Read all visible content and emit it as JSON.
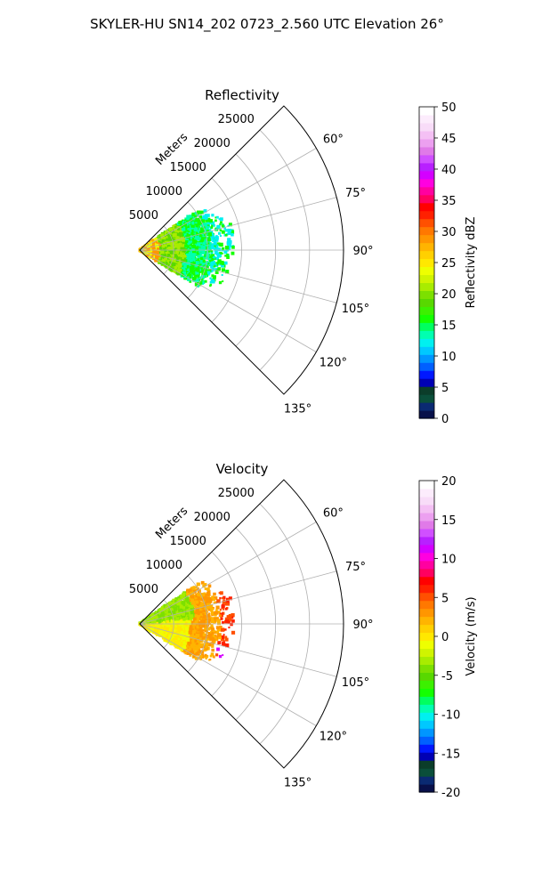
{
  "figure": {
    "title": "SKYLER-HU  SN14_202  0723_2.560 UTC Elevation 26°"
  },
  "chart_data": [
    {
      "type": "polar-sector",
      "title": "Reflectivity",
      "radial_label": "Meters",
      "theta_range_deg": [
        45,
        135
      ],
      "theta_ticks": [
        "60°",
        "75°",
        "90°",
        "105°",
        "120°",
        "135°"
      ],
      "radial_max": 30000,
      "radial_ticks": [
        "5000",
        "10000",
        "15000",
        "20000",
        "25000"
      ],
      "grid": true,
      "field": "reflectivity",
      "colorbar": {
        "label": "Reflectivity dBZ",
        "range": [
          0,
          50
        ],
        "ticks": [
          "0",
          "5",
          "10",
          "15",
          "20",
          "25",
          "30",
          "35",
          "40",
          "45",
          "50"
        ],
        "colors": [
          "#08104a",
          "#0a2a72",
          "#0a4f3a",
          "#0b3d2a",
          "#0000b4",
          "#0018ff",
          "#0060ff",
          "#0096ff",
          "#00c8ff",
          "#00f0f0",
          "#00ffb0",
          "#00ff60",
          "#14ff00",
          "#3cf000",
          "#58d800",
          "#7ce000",
          "#a8ec00",
          "#d0f400",
          "#eeff00",
          "#ffe800",
          "#ffd000",
          "#ffb400",
          "#ff9600",
          "#ff7800",
          "#ff5000",
          "#ff2000",
          "#ff0000",
          "#ff0060",
          "#ff00a0",
          "#ff00e0",
          "#d400ff",
          "#b820ff",
          "#d050ff",
          "#e07ae8",
          "#eca0f0",
          "#f4c0f4",
          "#f8dcf8",
          "#fcecfc",
          "#ffffff"
        ]
      },
      "echo": {
        "dominant": "green-yellow near radar, cyan at range",
        "max_range_m": 15000,
        "azimuth_extent_deg": [
          55,
          122
        ]
      }
    },
    {
      "type": "polar-sector",
      "title": "Velocity",
      "radial_label": "Meters",
      "theta_range_deg": [
        45,
        135
      ],
      "theta_ticks": [
        "60°",
        "75°",
        "90°",
        "105°",
        "120°",
        "135°"
      ],
      "radial_max": 30000,
      "radial_ticks": [
        "5000",
        "10000",
        "15000",
        "20000",
        "25000"
      ],
      "grid": true,
      "field": "velocity",
      "colorbar": {
        "label": "Velocity (m/s)",
        "range": [
          -20,
          20
        ],
        "ticks": [
          "-20",
          "-15",
          "-10",
          "-5",
          "0",
          "5",
          "10",
          "15",
          "20"
        ],
        "colors": [
          "#08104a",
          "#0a2a72",
          "#0a4f3a",
          "#0b3d2a",
          "#0000b4",
          "#0018ff",
          "#0060ff",
          "#0096ff",
          "#00c8ff",
          "#00f0f0",
          "#00ffb0",
          "#00ff60",
          "#14ff00",
          "#3cf000",
          "#58d800",
          "#7ce000",
          "#a8ec00",
          "#d0f400",
          "#eeff00",
          "#ffe800",
          "#ffd000",
          "#ffb400",
          "#ff9600",
          "#ff7800",
          "#ff5000",
          "#ff2000",
          "#ff0000",
          "#ff0060",
          "#ff00a0",
          "#ff00e0",
          "#d400ff",
          "#b820ff",
          "#d050ff",
          "#e07ae8",
          "#eca0f0",
          "#f4c0f4",
          "#f8dcf8",
          "#fcecfc",
          "#ffffff"
        ]
      },
      "echo": {
        "dominant": "yellow-orange receding, green approaching on north-west edge",
        "max_range_m": 15000,
        "azimuth_extent_deg": [
          55,
          122
        ]
      }
    }
  ]
}
